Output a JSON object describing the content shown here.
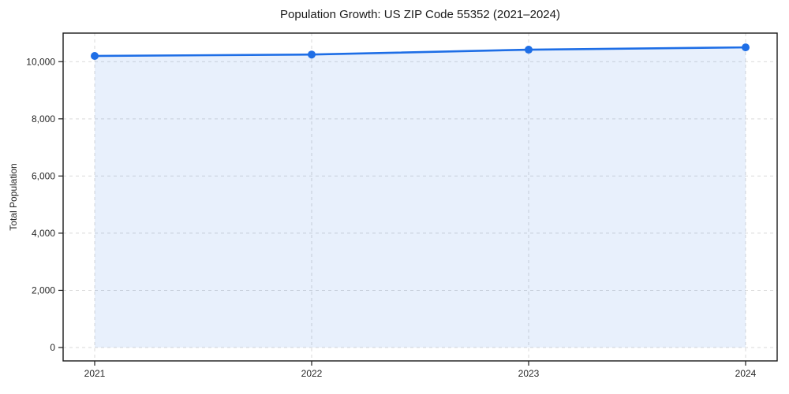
{
  "page": {
    "background": "#ffffff"
  },
  "chart_data": {
    "type": "area",
    "title": "Population Growth: US ZIP Code 55352 (2021–2024)",
    "xlabel": "",
    "ylabel": "Total Population",
    "categories": [
      "2021",
      "2022",
      "2023",
      "2024"
    ],
    "series": [
      {
        "name": "Total Population",
        "values": [
          10200,
          10250,
          10420,
          10500
        ]
      }
    ],
    "y_ticks": [
      0,
      2000,
      4000,
      6000,
      8000,
      10000
    ],
    "y_tick_labels": [
      "0",
      "2,000",
      "4,000",
      "6,000",
      "8,000",
      "10,000"
    ],
    "ylim": [
      0,
      11000
    ],
    "grid": true,
    "grid_style": "dashed",
    "legend": false,
    "colors": {
      "line": "#1e6ee6",
      "marker": "#1e6ee6",
      "fill": "rgba(30,110,230,0.10)",
      "grid": "#d9d9d9",
      "spine": "#1a1a1a",
      "text": "#262626",
      "title": "#1a1a1a"
    }
  }
}
